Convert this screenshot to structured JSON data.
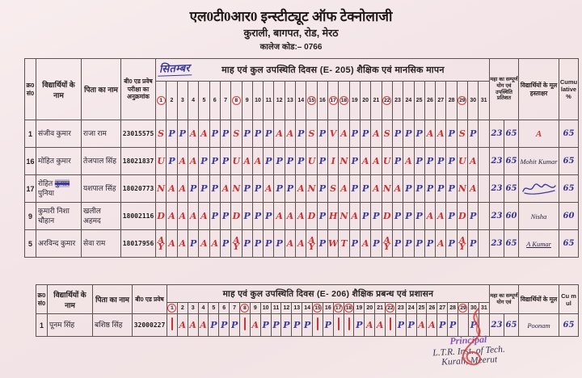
{
  "header": {
    "line1": "एल0टी0आर0 इन्स्टीट्यूट ऑफ टेक्नोलाजी",
    "line2": "कुराली, बागपत, रोड, मेरठ",
    "line3": "कालेज कोड:– 0766"
  },
  "colors": {
    "red_ink": "#c93434",
    "blue_ink": "#3b3b9b",
    "stamp_purple": "#8a56b0",
    "paper": "#f3e4e7"
  },
  "table1": {
    "month_handwritten": "सितम्बर",
    "band_title": "माह एवं कुल उपस्थिति दिवस (E- 205) शैक्षिक एवं मानसिक मापन",
    "col_headers": {
      "sr": "क्र0 सं0",
      "student": "विद्यार्थियों के नाम",
      "father": "पिता का नाम",
      "roll": "बी0 एड प्रवेष परीक्षा का अनुक्रमांक",
      "total": "महा का सम्पूर्ण योग एवं उपस्थिति प्रतिशत",
      "sign": "विद्यार्थियों के मूल हस्ताक्षर",
      "cumulative": "Cumulative %"
    },
    "days": [
      1,
      2,
      3,
      4,
      5,
      6,
      7,
      8,
      9,
      10,
      11,
      12,
      13,
      14,
      15,
      16,
      17,
      18,
      19,
      20,
      21,
      22,
      23,
      24,
      25,
      26,
      27,
      28,
      29,
      30,
      31
    ],
    "circled_days": [
      1,
      8,
      15,
      17,
      18,
      22,
      29
    ],
    "rows": [
      {
        "sr": "1",
        "student": "संजीव कुमार",
        "student_struck": "",
        "student_tail": "",
        "father": "राजा राम",
        "roll": "23015575",
        "marks": [
          "S",
          "P",
          "P",
          "A",
          "A",
          "P",
          "P",
          "S",
          "P",
          "P",
          "P",
          "A",
          "A",
          "P",
          "S",
          "P",
          "V",
          "A",
          "P",
          "P",
          "A",
          "S",
          "P",
          "P",
          "P",
          "A",
          "A",
          "P",
          "S",
          "P",
          ""
        ],
        "total_days": "23",
        "percent": "65",
        "signature": "A",
        "sig_color": "red",
        "sig_underline": false,
        "signature_scribble": false,
        "cumulative": "65"
      },
      {
        "sr": "16",
        "student": "मोहित कुमार",
        "student_struck": "",
        "student_tail": "",
        "father": "तेजपाल सिंह",
        "roll": "18021837",
        "marks": [
          "U",
          "P",
          "A",
          "A",
          "P",
          "P",
          "P",
          "U",
          "A",
          "A",
          "P",
          "P",
          "P",
          "P",
          "U",
          "P",
          "I",
          "N",
          "P",
          "A",
          "A",
          "U",
          "P",
          "A",
          "P",
          "P",
          "P",
          "P",
          "U",
          "A",
          ""
        ],
        "total_days": "23",
        "percent": "65",
        "signature": "Mohit Kumar",
        "sig_color": "dark",
        "sig_underline": false,
        "signature_scribble": false,
        "cumulative": "65"
      },
      {
        "sr": "17",
        "student": "रोहित",
        "student_struck": "कुमार",
        "student_tail": "पुनिया",
        "father": "यशपाल सिंह",
        "roll": "18020773",
        "marks": [
          "N",
          "A",
          "A",
          "P",
          "P",
          "P",
          "A",
          "N",
          "P",
          "P",
          "A",
          "P",
          "P",
          "A",
          "N",
          "P",
          "S",
          "A",
          "P",
          "P",
          "A",
          "N",
          "A",
          "P",
          "P",
          "P",
          "P",
          "P",
          "N",
          "A",
          ""
        ],
        "total_days": "23",
        "percent": "65",
        "signature": "",
        "sig_color": "dark",
        "sig_underline": false,
        "signature_scribble": true,
        "cumulative": "65"
      },
      {
        "sr": "9",
        "student": "कुमारी निशा चौहान",
        "student_struck": "",
        "student_tail": "",
        "father": "खलील अहमद",
        "roll": "18002116",
        "marks": [
          "D",
          "A",
          "A",
          "A",
          "A",
          "P",
          "P",
          "D",
          "P",
          "P",
          "P",
          "A",
          "A",
          "A",
          "D",
          "P",
          "H",
          "N",
          "A",
          "P",
          "P",
          "D",
          "P",
          "P",
          "P",
          "A",
          "A",
          "P",
          "D",
          "P",
          ""
        ],
        "total_days": "23",
        "percent": "60",
        "signature": "Nisha",
        "sig_color": "dark",
        "sig_underline": false,
        "signature_scribble": false,
        "cumulative": "60"
      },
      {
        "sr": "5",
        "student": "अरविन्द कुमार",
        "student_struck": "",
        "student_tail": "",
        "father": "सेवा राम",
        "roll": "18017956",
        "marks": [
          "AY",
          "A",
          "A",
          "P",
          "A",
          "A",
          "P",
          "AY",
          "P",
          "P",
          "P",
          "P",
          "A",
          "A",
          "AY",
          "P",
          "W",
          "T",
          "P",
          "A",
          "P",
          "AY",
          "P",
          "P",
          "P",
          "P",
          "A",
          "P",
          "AY",
          "P",
          ""
        ],
        "total_days": "23",
        "percent": "65",
        "signature": "A Kumar",
        "sig_color": "dark",
        "sig_underline": true,
        "signature_scribble": false,
        "cumulative": "65"
      }
    ]
  },
  "table2": {
    "month_handwritten": "",
    "band_title": "माह एवं कुल उपस्थिति दिवस (E- 206) शैक्षिक प्रबन्ध एवं प्रशासन",
    "col_headers": {
      "sr": "क्र0 सं0",
      "student": "विद्यार्थियों के नाम",
      "father": "पिता का नाम",
      "roll": "बी0 एड प्रवेष",
      "total": "महा का सम्पूर्ण योग एवं",
      "sign": "विद्यार्थियों के मूल",
      "cumulative": "Cu mul"
    },
    "days": [
      1,
      2,
      3,
      4,
      5,
      6,
      7,
      8,
      9,
      10,
      11,
      12,
      13,
      14,
      15,
      16,
      17,
      18,
      19,
      20,
      21,
      22,
      23,
      24,
      25,
      26,
      27,
      28,
      29,
      30,
      31
    ],
    "circled_days": [
      1,
      8,
      15,
      17,
      18,
      22,
      29
    ],
    "rows": [
      {
        "sr": "1",
        "student": "पूनम सिंह",
        "student_struck": "",
        "student_tail": "",
        "father": "बशिष्ठ सिंह",
        "roll": "32000227",
        "marks": [
          "|",
          "A",
          "A",
          "A",
          "P",
          "P",
          "P",
          "|",
          "A",
          "P",
          "P",
          "P",
          "P",
          "P",
          "|",
          "P",
          "|",
          "|",
          "P",
          "A",
          "A",
          "|",
          "P",
          "P",
          "A",
          "A",
          "P",
          "P",
          "",
          "P",
          ""
        ],
        "total_days": "23",
        "percent": "65",
        "signature": "Poonam",
        "sig_color": "dark",
        "sig_underline": false,
        "signature_scribble": false,
        "cumulative": "65"
      }
    ]
  },
  "stamp": {
    "line1": "Principal",
    "line2": "L.T.R. Inst. of Tech.",
    "line3": "Kurali, Meerut"
  }
}
